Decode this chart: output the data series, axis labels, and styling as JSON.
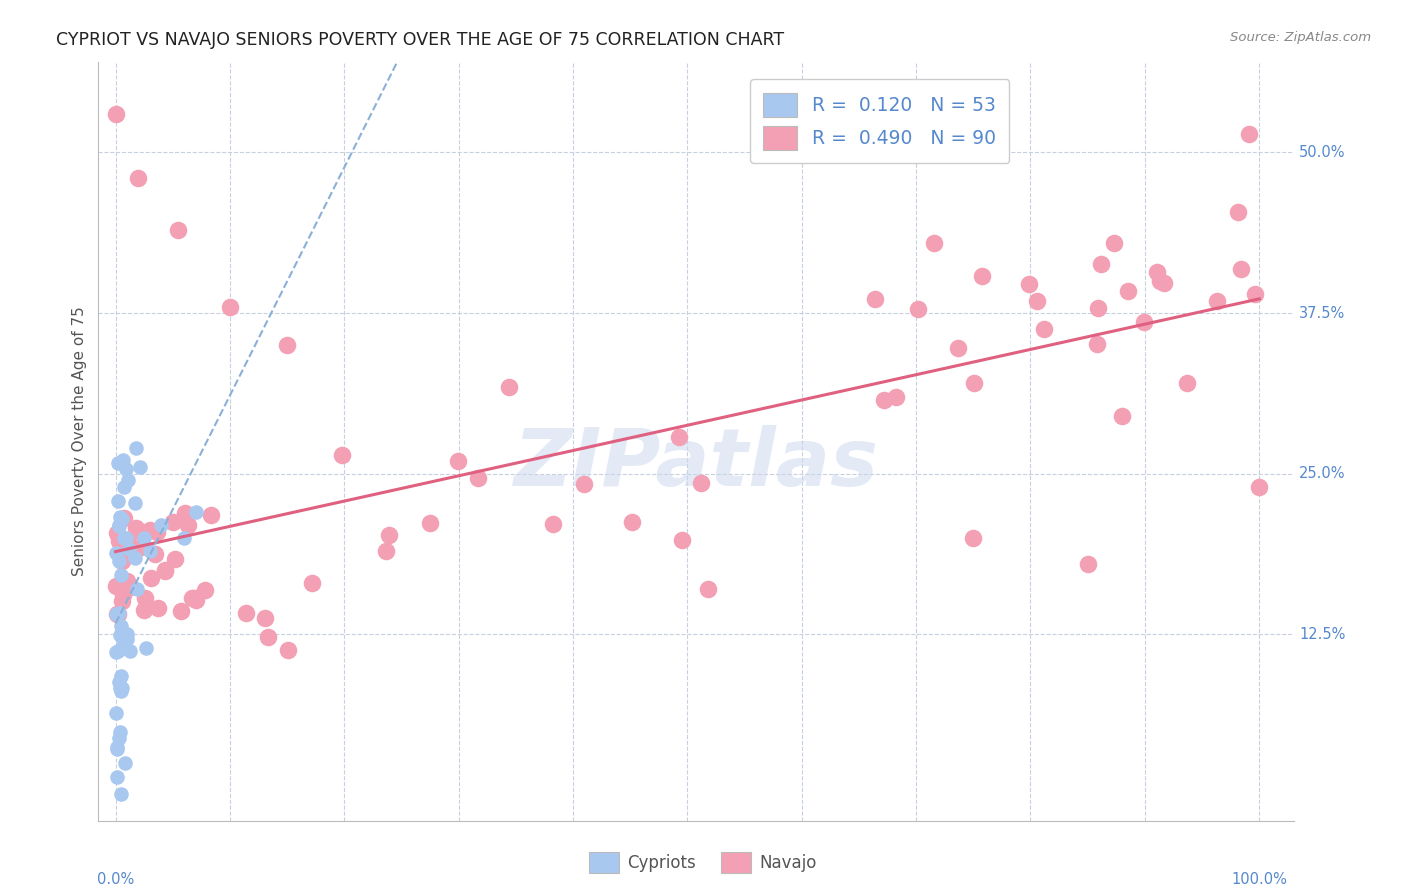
{
  "title": "CYPRIOT VS NAVAJO SENIORS POVERTY OVER THE AGE OF 75 CORRELATION CHART",
  "source": "Source: ZipAtlas.com",
  "ylabel_label": "Seniors Poverty Over the Age of 75",
  "right_ytick_labels": [
    "12.5%",
    "25.0%",
    "37.5%",
    "50.0%"
  ],
  "right_ytick_vals": [
    0.125,
    0.25,
    0.375,
    0.5
  ],
  "xlim": [
    0.0,
    1.0
  ],
  "ylim": [
    0.0,
    0.55
  ],
  "legend_blue_r": "0.120",
  "legend_blue_n": "53",
  "legend_pink_r": "0.490",
  "legend_pink_n": "90",
  "watermark": "ZIPatlas",
  "blue_scatter_color": "#a8c8f0",
  "pink_scatter_color": "#f4a0b4",
  "pink_line_color": "#e06080",
  "blue_dash_color": "#8ab0d8",
  "grid_color": "#c8d0e0",
  "title_color": "#222222",
  "source_color": "#888888",
  "axis_label_color": "#555555",
  "right_label_color": "#5588cc",
  "bottom_label_color": "#5588cc"
}
